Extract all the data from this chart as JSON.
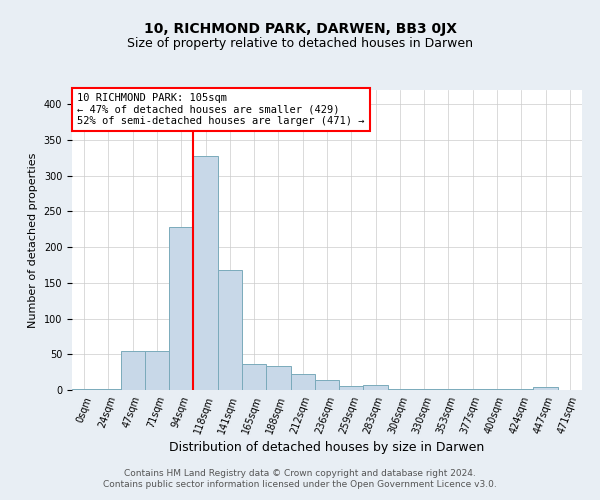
{
  "title": "10, RICHMOND PARK, DARWEN, BB3 0JX",
  "subtitle": "Size of property relative to detached houses in Darwen",
  "xlabel": "Distribution of detached houses by size in Darwen",
  "ylabel": "Number of detached properties",
  "categories": [
    "0sqm",
    "24sqm",
    "47sqm",
    "71sqm",
    "94sqm",
    "118sqm",
    "141sqm",
    "165sqm",
    "188sqm",
    "212sqm",
    "236sqm",
    "259sqm",
    "283sqm",
    "306sqm",
    "330sqm",
    "353sqm",
    "377sqm",
    "400sqm",
    "424sqm",
    "447sqm",
    "471sqm"
  ],
  "values": [
    2,
    2,
    55,
    55,
    228,
    328,
    168,
    37,
    33,
    22,
    14,
    5,
    7,
    2,
    2,
    2,
    1,
    1,
    1,
    4,
    0
  ],
  "bar_color": "#c8d8e8",
  "bar_edge_color": "#7aaabb",
  "bar_width": 1.0,
  "vline_x_index": 5,
  "vline_color": "red",
  "annotation_text": "10 RICHMOND PARK: 105sqm\n← 47% of detached houses are smaller (429)\n52% of semi-detached houses are larger (471) →",
  "annotation_box_color": "white",
  "annotation_box_edge_color": "red",
  "ylim": [
    0,
    420
  ],
  "yticks": [
    0,
    50,
    100,
    150,
    200,
    250,
    300,
    350,
    400
  ],
  "bg_color": "#e8eef4",
  "plot_bg_color": "white",
  "footer_line1": "Contains HM Land Registry data © Crown copyright and database right 2024.",
  "footer_line2": "Contains public sector information licensed under the Open Government Licence v3.0.",
  "title_fontsize": 10,
  "subtitle_fontsize": 9,
  "xlabel_fontsize": 9,
  "ylabel_fontsize": 8,
  "tick_fontsize": 7,
  "annot_fontsize": 7.5,
  "footer_fontsize": 6.5
}
